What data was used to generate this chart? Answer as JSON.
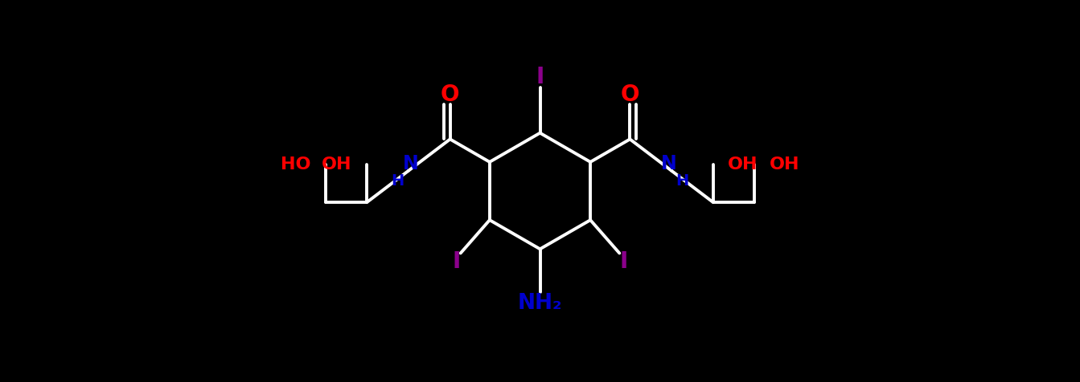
{
  "bg": "#000000",
  "bc": "#FFFFFF",
  "ic": "#8B008B",
  "oc": "#FF0000",
  "nc": "#0000CD",
  "lw": 2.8,
  "fw": 13.43,
  "fh": 4.76,
  "dpi": 100,
  "xlim": [
    -6.5,
    6.5
  ],
  "ylim": [
    -2.2,
    2.2
  ]
}
